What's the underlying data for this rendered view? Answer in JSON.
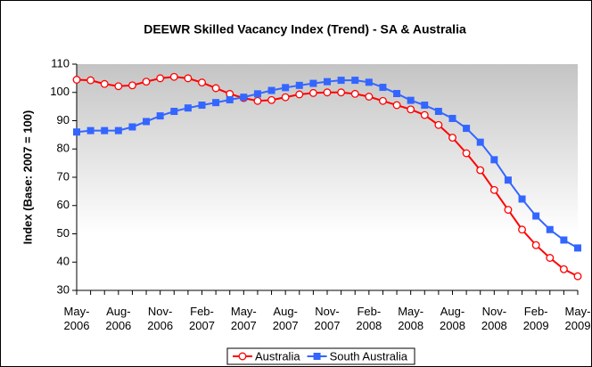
{
  "chart_data": {
    "type": "line",
    "title": "DEEWR Skilled Vacancy Index (Trend) - SA & Australia",
    "y_label": "Index (Base: 2007 = 100)",
    "categories": [
      "May-2006",
      null,
      null,
      "Aug-2006",
      null,
      null,
      "Nov-2006",
      null,
      null,
      "Feb-2007",
      null,
      null,
      "May-2007",
      null,
      null,
      "Aug-2007",
      null,
      null,
      "Nov-2007",
      null,
      null,
      "Feb-2008",
      null,
      null,
      "May-2008",
      null,
      null,
      "Aug-2008",
      null,
      null,
      "Nov-2008",
      null,
      null,
      "Feb-2009",
      null,
      null,
      "May-2009"
    ],
    "series": [
      {
        "name": "Australia",
        "color": "#ff0000",
        "marker": "open-circle",
        "values": [
          104.5,
          104.3,
          103,
          102.2,
          102.5,
          103.8,
          105,
          105.5,
          105,
          103.5,
          101.5,
          99.5,
          98,
          97,
          97.3,
          98.3,
          99.3,
          99.8,
          100,
          100,
          99.5,
          98.5,
          97,
          95.5,
          94,
          92,
          88.5,
          84,
          78.5,
          72.5,
          65.5,
          58.5,
          51.5,
          46,
          41.5,
          37.5,
          35
        ]
      },
      {
        "name": "South Australia",
        "color": "#3366ff",
        "marker": "square",
        "values": [
          86,
          86.5,
          86.5,
          86.5,
          87.8,
          89.7,
          91.7,
          93.3,
          94.5,
          95.5,
          96.4,
          97.4,
          98.3,
          99.5,
          100.7,
          101.7,
          102.5,
          103.2,
          103.8,
          104.3,
          104.3,
          103.6,
          101.8,
          99.6,
          97.2,
          95.5,
          93.3,
          90.8,
          87.3,
          82.4,
          76.2,
          69,
          62.3,
          56.3,
          51.5,
          47.8,
          45
        ]
      }
    ],
    "ylim": [
      30,
      110
    ],
    "yticks": [
      30,
      40,
      50,
      60,
      70,
      80,
      90,
      100,
      110
    ],
    "legend": "bottom"
  }
}
